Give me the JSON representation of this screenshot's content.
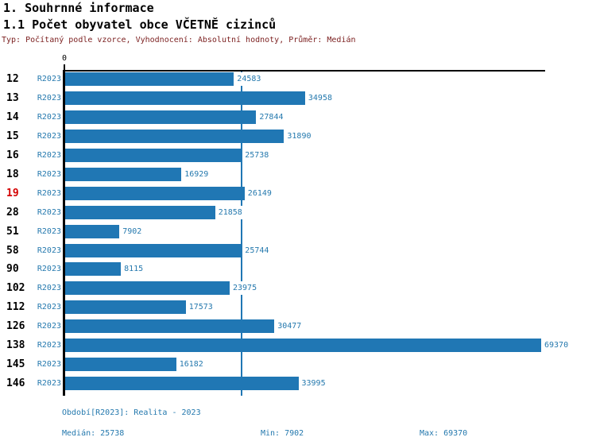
{
  "title": "1. Souhrnné informace",
  "subtitle": "1.1 Počet obyvatel obce VČETNĚ cizinců",
  "meta_line": "Typ: Počítaný podle vzorce, Vyhodnocení: Absolutní hodnoty, Průměr: Medián",
  "axis": {
    "zero_label": "0"
  },
  "chart_data": {
    "type": "bar",
    "orientation": "horizontal",
    "title": "1.1 Počet obyvatel obce VČETNĚ cizinců",
    "categories": [
      "12",
      "13",
      "14",
      "15",
      "16",
      "18",
      "19",
      "28",
      "51",
      "58",
      "90",
      "102",
      "112",
      "126",
      "138",
      "145",
      "146"
    ],
    "series_label": "R2023",
    "values": [
      24583,
      34958,
      27844,
      31890,
      25738,
      16929,
      26149,
      21858,
      7902,
      25744,
      8115,
      23975,
      17573,
      30477,
      69370,
      16182,
      33995
    ],
    "highlighted_category": "19",
    "xlim": [
      0,
      69370
    ],
    "median_line_value": 25738,
    "median": 25738,
    "min": 7902,
    "max": 69370,
    "legend_position": "none",
    "grid": false
  },
  "footer": {
    "period": "Období[R2023]: Realita - 2023",
    "median": "Medián: 25738",
    "min": "Min: 7902",
    "max": "Max: 69370"
  },
  "colors": {
    "bar": "#2077b4",
    "blue_text": "#2579ae",
    "highlight_red": "#d40000",
    "meta_maroon": "#7b1f1f",
    "axis_black": "#000000"
  }
}
